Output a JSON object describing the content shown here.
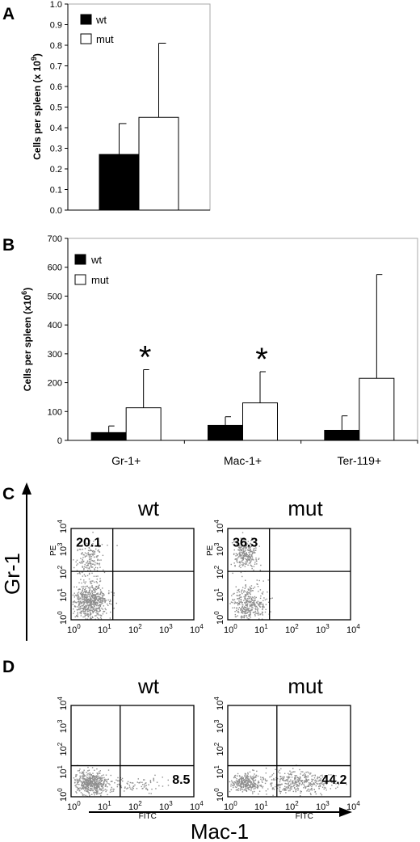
{
  "panels": {
    "a": "A",
    "b": "B",
    "c": "C",
    "d": "D"
  },
  "chart_data": [
    {
      "type": "bar",
      "panel": "A",
      "ylabel_main": "Cells per spleen (x 10",
      "ylabel_exp": "9",
      "ylabel_close": ")",
      "ylim": [
        0,
        1.0
      ],
      "yticks": [
        "0.0",
        "0.1",
        "0.2",
        "0.3",
        "0.4",
        "0.5",
        "0.6",
        "0.7",
        "0.8",
        "0.9",
        "1.0"
      ],
      "grid": false,
      "legend_placement": "top-left",
      "categories": [
        ""
      ],
      "series": [
        {
          "name": "wt",
          "values": [
            0.27
          ],
          "error": [
            0.15
          ],
          "color": "#000000"
        },
        {
          "name": "mut",
          "values": [
            0.45
          ],
          "error": [
            0.36
          ],
          "color": "#ffffff"
        }
      ]
    },
    {
      "type": "bar",
      "panel": "B",
      "ylabel_main": "Cells per spleen (x10",
      "ylabel_exp": "6",
      "ylabel_close": ")",
      "ylim": [
        0,
        700
      ],
      "yticks": [
        "0",
        "100",
        "200",
        "300",
        "400",
        "500",
        "600",
        "700"
      ],
      "grid": false,
      "legend_placement": "top-left",
      "categories": [
        "Gr-1+",
        "Mac-1+",
        "Ter-119+"
      ],
      "significance": [
        "*",
        "*",
        ""
      ],
      "series": [
        {
          "name": "wt",
          "values": [
            27,
            52,
            35
          ],
          "error": [
            23,
            30,
            50
          ],
          "color": "#000000"
        },
        {
          "name": "mut",
          "values": [
            113,
            130,
            215
          ],
          "error": [
            132,
            108,
            360
          ],
          "color": "#ffffff"
        }
      ]
    }
  ],
  "flow_c": {
    "axis_label": "Gr-1",
    "channel": "PE",
    "plots": [
      {
        "title": "wt",
        "percent": "20.1"
      },
      {
        "title": "mut",
        "percent": "36.3"
      }
    ]
  },
  "flow_d": {
    "axis_label": "Mac-1",
    "channel": "FITC",
    "plots": [
      {
        "title": "wt",
        "percent": "8.5"
      },
      {
        "title": "mut",
        "percent": "44.2"
      }
    ]
  },
  "flow_axis": {
    "base": "10",
    "exps": [
      "0",
      "1",
      "2",
      "3",
      "4"
    ]
  }
}
